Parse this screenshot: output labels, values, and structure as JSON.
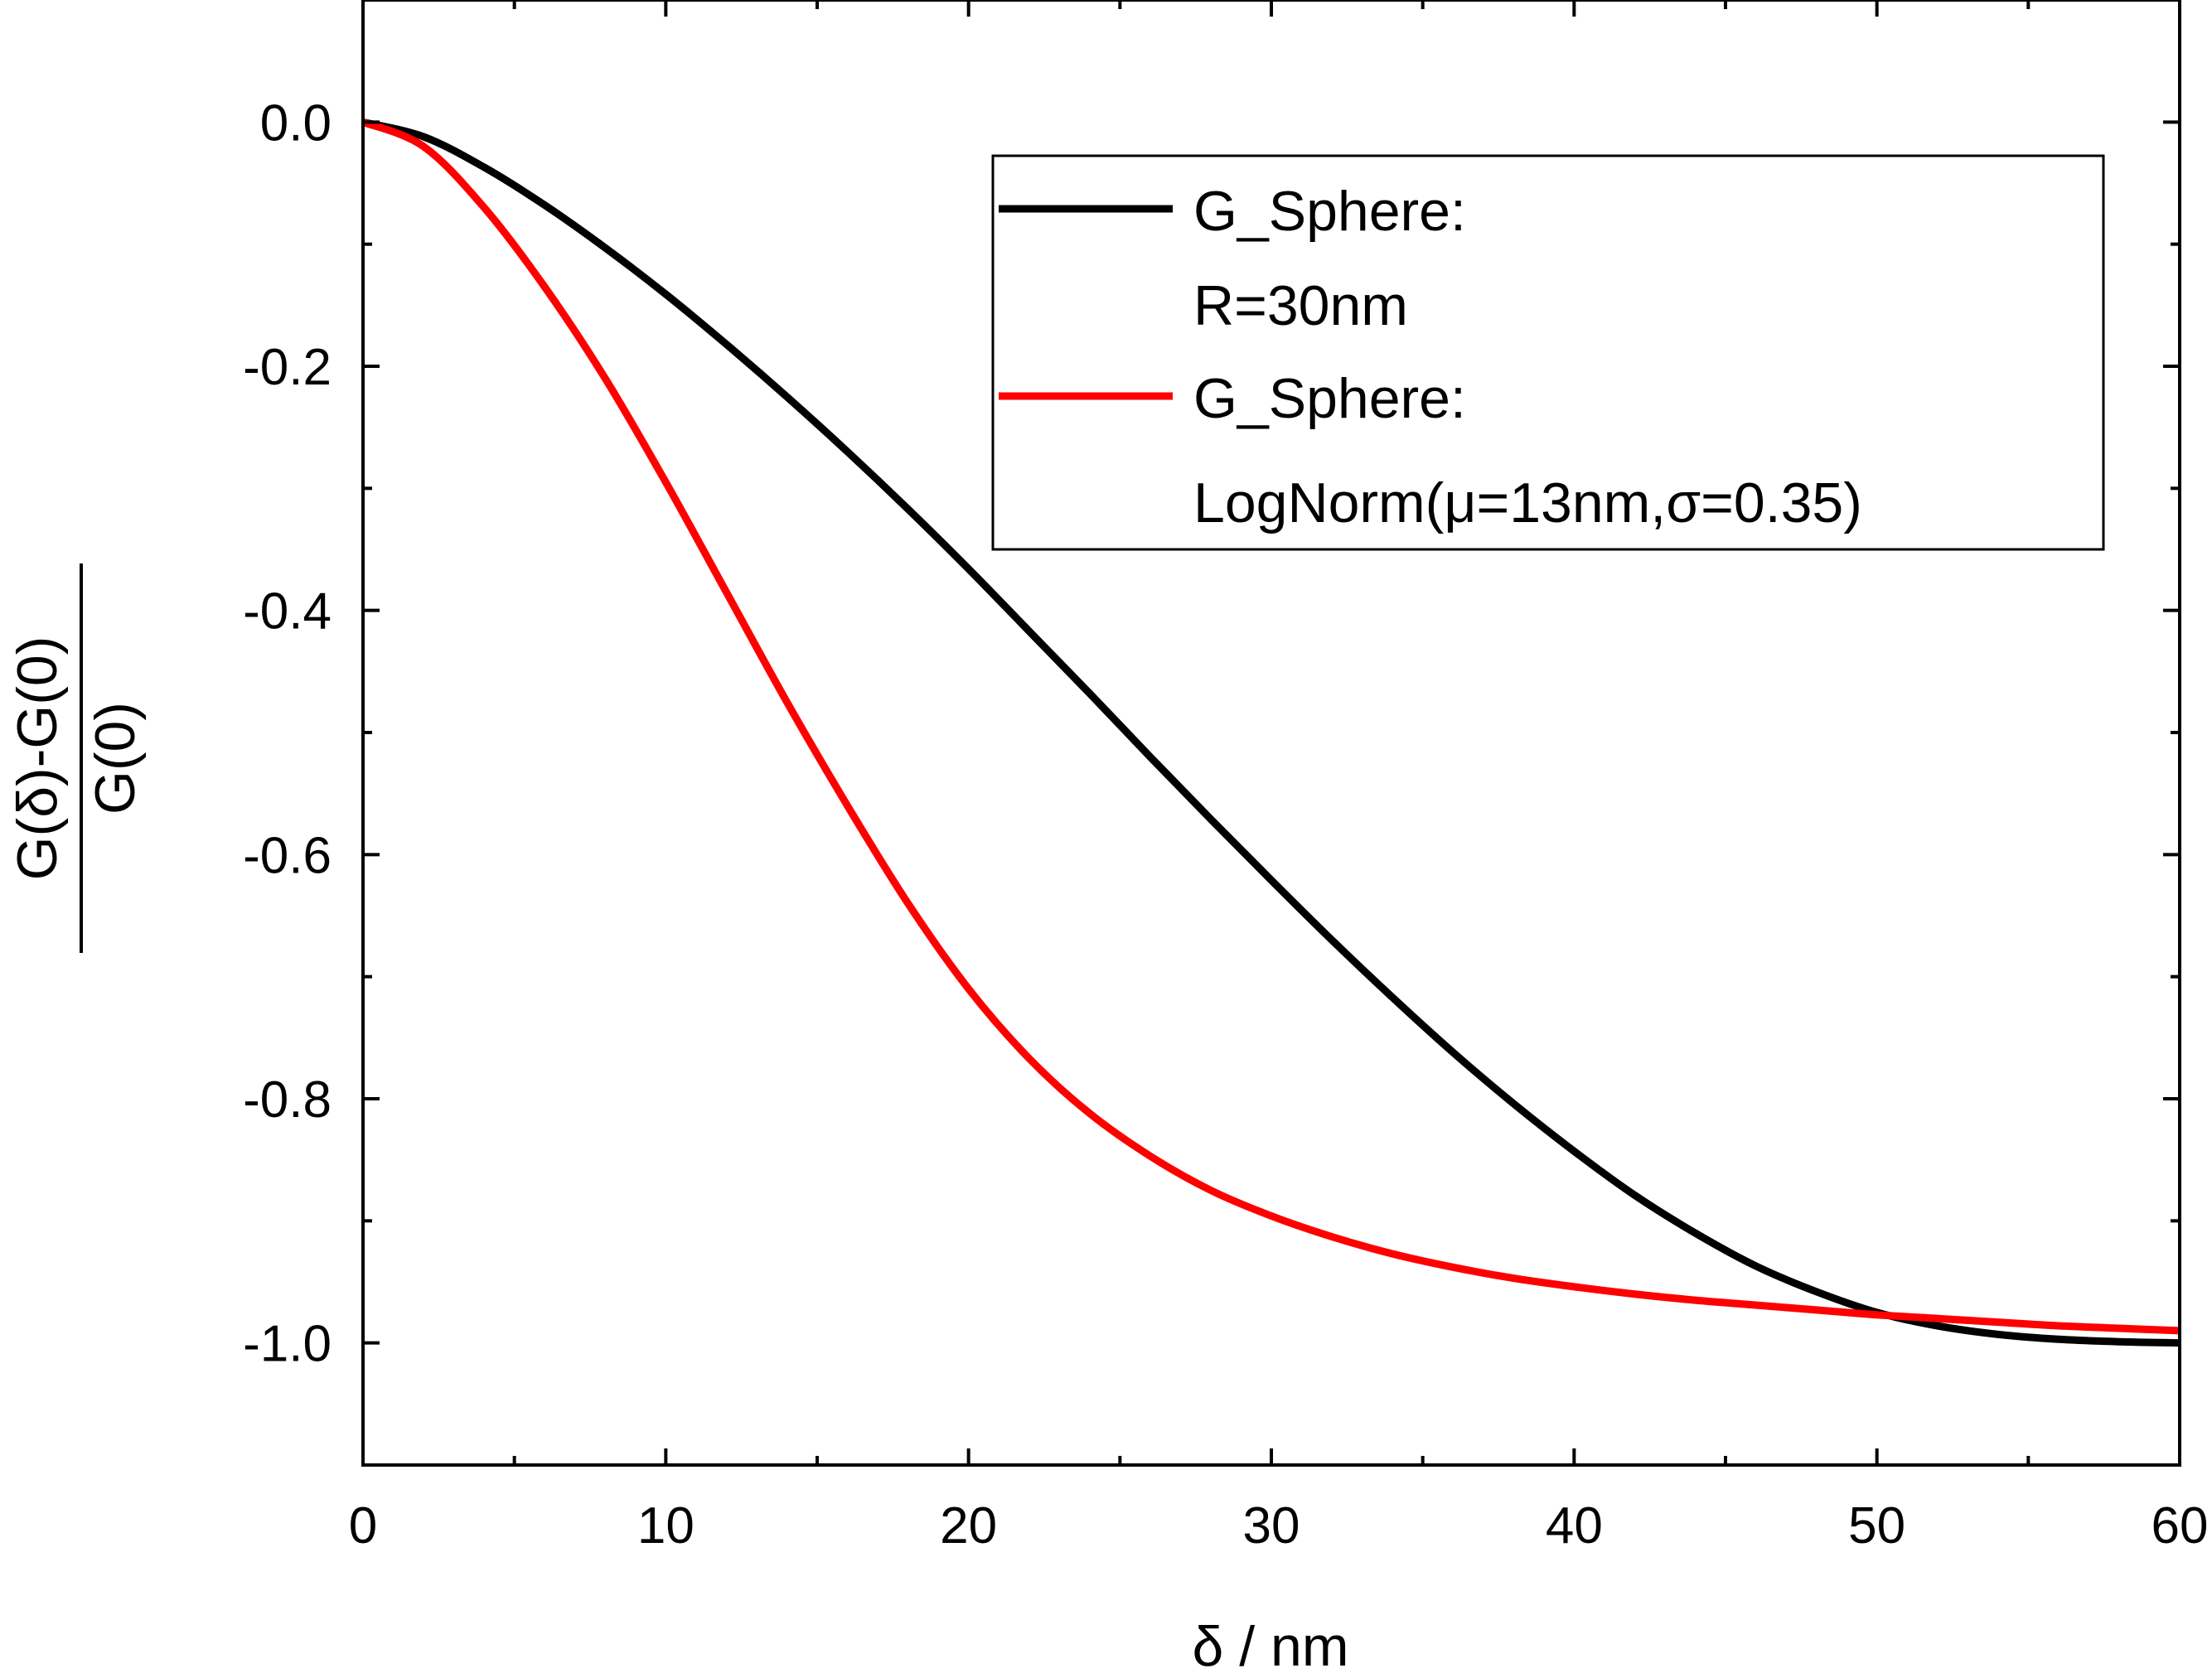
{
  "chart_data": {
    "type": "line",
    "xlabel": "δ / nm",
    "ylabel_numerator": "G(δ)-G(0)",
    "ylabel_denominator": "G(0)",
    "xlim": [
      0,
      60
    ],
    "ylim": [
      -1.1,
      0.1
    ],
    "x_ticks": [
      0,
      10,
      20,
      30,
      40,
      50,
      60
    ],
    "y_ticks": [
      0.0,
      -0.2,
      -0.4,
      -0.6,
      -0.8,
      -1.0
    ],
    "x_tick_labels": [
      "0",
      "10",
      "20",
      "30",
      "40",
      "50",
      "60"
    ],
    "y_tick_labels": [
      "0.0",
      "-0.2",
      "-0.4",
      "-0.6",
      "-0.8",
      "-1.0"
    ],
    "grid": false,
    "legend_placement": "top-right",
    "series": [
      {
        "name_lines": [
          "G_Sphere:",
          "R=30nm"
        ],
        "color": "#000000",
        "x": [
          0,
          2,
          4,
          6,
          8,
          10,
          12,
          14,
          16,
          18,
          20,
          22,
          24,
          26,
          28,
          30,
          32,
          34,
          36,
          38,
          40,
          42,
          44,
          46,
          48,
          50,
          52,
          54,
          56,
          58,
          60
        ],
        "y": [
          0.0,
          -0.012,
          -0.037,
          -0.068,
          -0.103,
          -0.141,
          -0.182,
          -0.225,
          -0.27,
          -0.317,
          -0.366,
          -0.417,
          -0.468,
          -0.52,
          -0.571,
          -0.621,
          -0.67,
          -0.717,
          -0.762,
          -0.804,
          -0.843,
          -0.879,
          -0.91,
          -0.937,
          -0.958,
          -0.975,
          -0.986,
          -0.993,
          -0.997,
          -0.999,
          -1.0
        ]
      },
      {
        "name_lines": [
          "G_Sphere:",
          "LogNorm(μ=13nm,σ=0.35)"
        ],
        "color": "#ff0000",
        "x": [
          0,
          2,
          4,
          6,
          8,
          10,
          12,
          14,
          16,
          18,
          20,
          22,
          24,
          26,
          28,
          30,
          32,
          34,
          36,
          38,
          40,
          42,
          44,
          46,
          48,
          50,
          52,
          54,
          56,
          58,
          60
        ],
        "y": [
          0.0,
          -0.02,
          -0.07,
          -0.135,
          -0.21,
          -0.295,
          -0.385,
          -0.475,
          -0.56,
          -0.64,
          -0.71,
          -0.767,
          -0.812,
          -0.847,
          -0.875,
          -0.896,
          -0.913,
          -0.927,
          -0.938,
          -0.947,
          -0.954,
          -0.96,
          -0.965,
          -0.969,
          -0.973,
          -0.977,
          -0.98,
          -0.983,
          -0.986,
          -0.988,
          -0.99
        ]
      }
    ]
  }
}
